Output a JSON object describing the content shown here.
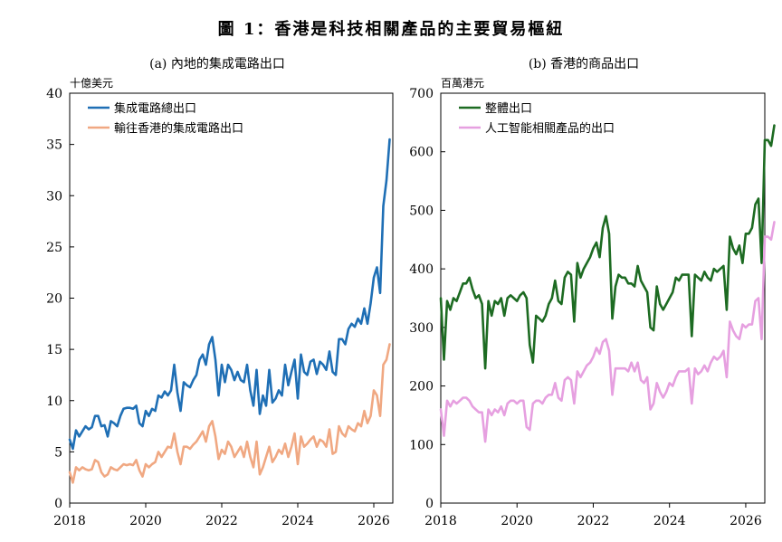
{
  "figure_title": "圖 1：香港是科技相關產品的主要貿易樞紐",
  "chart_data": [
    {
      "id": "a",
      "type": "line",
      "title": "(a) 內地的集成電路出口",
      "unit_label": "十億美元",
      "xlabel": "",
      "ylabel": "十億美元",
      "xlim": [
        2018,
        2026.5
      ],
      "ylim": [
        0,
        40
      ],
      "yticks": [
        0,
        5,
        10,
        15,
        20,
        25,
        30,
        35,
        40
      ],
      "xticks": [
        2018,
        2020,
        2022,
        2024,
        2026
      ],
      "grid": false,
      "legend_position": "top-left",
      "x_start": 2018,
      "x_step": 0.08333,
      "series": [
        {
          "name": "集成電路總出口",
          "color": "#1f6fb5",
          "values": [
            6.2,
            5.3,
            7.1,
            6.5,
            7.0,
            7.5,
            7.2,
            7.4,
            8.5,
            8.5,
            7.5,
            7.6,
            6.5,
            8.0,
            7.8,
            7.5,
            8.5,
            9.2,
            9.3,
            9.3,
            9.2,
            9.5,
            7.8,
            7.5,
            9.0,
            8.5,
            9.2,
            9.0,
            10.5,
            10.3,
            10.9,
            10.5,
            11.0,
            13.5,
            10.8,
            9.0,
            11.8,
            11.5,
            11.3,
            12.0,
            12.5,
            14.0,
            14.5,
            13.5,
            15.5,
            16.2,
            14.0,
            10.5,
            13.5,
            11.8,
            13.5,
            13.0,
            12.0,
            12.8,
            12.0,
            11.8,
            13.5,
            11.0,
            9.5,
            13.0,
            8.7,
            10.5,
            9.5,
            13.0,
            9.8,
            10.2,
            11.0,
            10.5,
            13.5,
            11.5,
            12.8,
            14.0,
            10.2,
            14.5,
            12.8,
            12.5,
            13.8,
            14.0,
            12.6,
            13.8,
            13.5,
            13.0,
            14.8,
            12.8,
            12.5,
            16.0,
            16.0,
            15.5,
            17.0,
            17.5,
            17.2,
            18.0,
            17.5,
            19.0,
            17.5,
            19.5,
            22.0,
            23.0,
            20.5,
            29.0,
            31.5,
            35.5
          ]
        },
        {
          "name": "輸往香港的集成電路出口",
          "color": "#f0a882",
          "values": [
            3.0,
            2.0,
            3.5,
            3.2,
            3.5,
            3.3,
            3.2,
            3.3,
            4.2,
            4.0,
            3.0,
            2.6,
            2.8,
            3.5,
            3.3,
            3.2,
            3.5,
            3.8,
            3.7,
            3.8,
            3.7,
            4.2,
            3.2,
            2.6,
            3.8,
            3.5,
            3.8,
            4.0,
            5.0,
            4.5,
            5.0,
            5.5,
            5.4,
            6.8,
            5.0,
            3.8,
            5.5,
            5.5,
            5.3,
            5.7,
            6.0,
            6.5,
            7.0,
            6.0,
            7.5,
            8.0,
            6.5,
            4.3,
            5.2,
            4.8,
            6.0,
            5.5,
            4.5,
            5.0,
            5.5,
            4.5,
            6.0,
            4.5,
            3.5,
            6.0,
            2.8,
            3.5,
            4.5,
            5.5,
            4.0,
            4.5,
            5.2,
            4.8,
            5.8,
            4.5,
            5.5,
            6.8,
            3.8,
            6.5,
            5.5,
            5.8,
            6.2,
            6.5,
            5.5,
            6.2,
            6.0,
            5.5,
            7.2,
            4.8,
            5.0,
            7.5,
            6.8,
            6.5,
            7.5,
            7.2,
            7.0,
            7.8,
            7.5,
            9.0,
            7.8,
            8.5,
            11.0,
            10.5,
            8.5,
            13.5,
            14.0,
            15.5
          ]
        }
      ]
    },
    {
      "id": "b",
      "type": "line",
      "title": "(b) 香港的商品出口",
      "unit_label": "百萬港元",
      "xlabel": "",
      "ylabel": "百萬港元",
      "xlim": [
        2018,
        2026.5
      ],
      "ylim": [
        0,
        700
      ],
      "yticks": [
        0,
        100,
        200,
        300,
        400,
        500,
        600,
        700
      ],
      "xticks": [
        2018,
        2020,
        2022,
        2024,
        2026
      ],
      "grid": false,
      "legend_position": "top-left",
      "x_start": 2018,
      "x_step": 0.08333,
      "series": [
        {
          "name": "整體出口",
          "color": "#1d6b22",
          "values": [
            350,
            245,
            345,
            330,
            350,
            345,
            360,
            375,
            375,
            385,
            365,
            350,
            355,
            340,
            230,
            345,
            320,
            345,
            340,
            350,
            320,
            350,
            355,
            350,
            345,
            355,
            360,
            350,
            270,
            240,
            320,
            315,
            310,
            320,
            340,
            350,
            380,
            345,
            340,
            385,
            395,
            390,
            310,
            410,
            385,
            400,
            410,
            420,
            435,
            445,
            420,
            470,
            490,
            460,
            315,
            370,
            390,
            385,
            385,
            375,
            375,
            370,
            405,
            380,
            370,
            360,
            300,
            295,
            370,
            340,
            330,
            340,
            350,
            360,
            385,
            380,
            390,
            390,
            390,
            285,
            390,
            385,
            380,
            395,
            385,
            380,
            400,
            395,
            400,
            405,
            330,
            455,
            435,
            425,
            440,
            410,
            460,
            460,
            470,
            510,
            520,
            410,
            620,
            620,
            610,
            645
          ]
        },
        {
          "name": "人工智能相關產品的出口",
          "color": "#e6a0e0",
          "values": [
            160,
            115,
            175,
            165,
            175,
            170,
            175,
            180,
            180,
            175,
            165,
            160,
            155,
            155,
            105,
            160,
            150,
            160,
            155,
            165,
            150,
            170,
            175,
            175,
            170,
            175,
            175,
            130,
            125,
            170,
            175,
            175,
            170,
            180,
            185,
            185,
            205,
            180,
            175,
            210,
            215,
            210,
            170,
            225,
            215,
            225,
            235,
            240,
            250,
            265,
            255,
            275,
            280,
            260,
            185,
            230,
            230,
            230,
            230,
            225,
            240,
            225,
            240,
            210,
            205,
            215,
            160,
            170,
            205,
            190,
            180,
            190,
            205,
            200,
            215,
            225,
            225,
            225,
            230,
            170,
            230,
            220,
            225,
            235,
            225,
            240,
            250,
            245,
            250,
            260,
            215,
            310,
            295,
            285,
            280,
            305,
            300,
            305,
            305,
            345,
            350,
            280,
            455,
            455,
            450,
            480
          ]
        }
      ]
    }
  ]
}
